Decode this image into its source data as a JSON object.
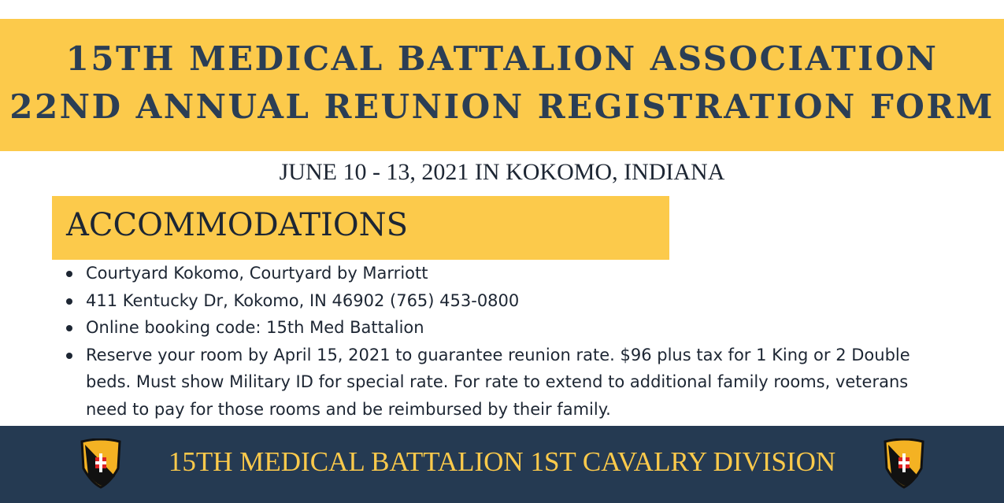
{
  "header": {
    "title_lines": [
      "15TH MEDICAL BATTALION ASSOCIATION",
      "22ND ANNUAL REUNION REGISTRATION FORM"
    ]
  },
  "subtitle": "JUNE 10 - 13, 2021 IN KOKOMO, INDIANA",
  "section": {
    "heading": "ACCOMMODATIONS",
    "items": [
      "Courtyard Kokomo, Courtyard by Marriott",
      "411 Kentucky Dr, Kokomo, IN 46902  (765) 453-0800",
      "Online booking code: 15th Med Battalion",
      "Reserve your room by April 15, 2021 to guarantee reunion rate.  $96 plus tax for 1 King or 2 Double beds.  Must show Military ID for special rate.  For rate to extend to additional family rooms, veterans need to pay for those rooms and be reimbursed by their family."
    ]
  },
  "footer": {
    "text": "15TH MEDICAL BATTALION 1ST CAVALRY DIVISION"
  }
}
